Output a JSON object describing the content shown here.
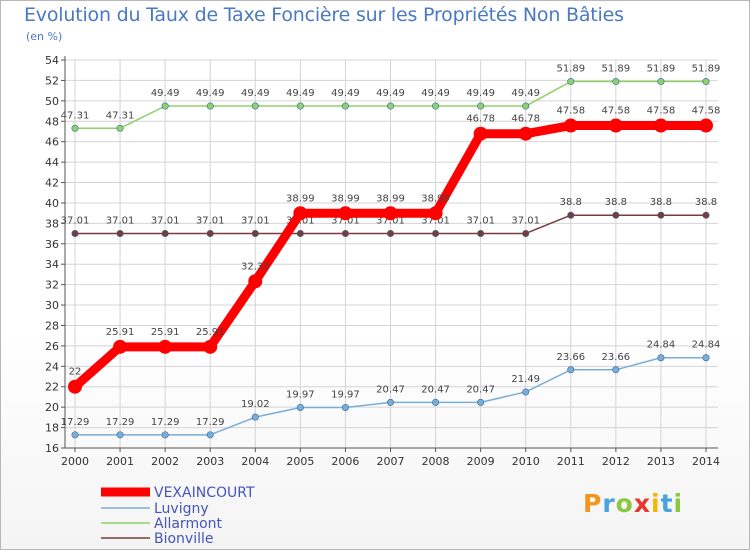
{
  "title": "Evolution du Taux de Taxe Foncière sur les Propriétés Non Bâties",
  "unit": "(en %)",
  "logo": {
    "text": "Proxiti",
    "colors": [
      "#f7941d",
      "#4aa3df",
      "#8dc63f",
      "#e8352e",
      "#f7b500",
      "#4aa3df",
      "#8dc63f"
    ]
  },
  "chart_data": {
    "type": "line",
    "title": "Evolution du Taux de Taxe Foncière sur les Propriétés Non Bâties",
    "ylabel": "(en %)",
    "xlabel": "",
    "x": [
      "2000",
      "2001",
      "2002",
      "2003",
      "2004",
      "2005",
      "2006",
      "2007",
      "2008",
      "2009",
      "2010",
      "2011",
      "2012",
      "2013",
      "2014"
    ],
    "ylim": [
      16,
      54
    ],
    "yticks": [
      16,
      18,
      20,
      22,
      24,
      26,
      28,
      30,
      32,
      34,
      36,
      38,
      40,
      42,
      44,
      46,
      48,
      50,
      52,
      54
    ],
    "grid": true,
    "legend": "bottom-left",
    "series": [
      {
        "name": "VEXAINCOURT",
        "color": "#ff0000",
        "values": [
          22,
          25.91,
          25.91,
          25.91,
          32.33,
          38.99,
          38.99,
          38.99,
          38.99,
          46.78,
          46.78,
          47.58,
          47.58,
          47.58,
          47.58
        ],
        "labels": [
          "22",
          "25.91",
          "25.91",
          "25.91",
          "32.33",
          "38.99",
          "38.99",
          "38.99",
          "38.99",
          "46.78",
          "46.78",
          "47.58",
          "47.58",
          "47.58",
          "47.58"
        ]
      },
      {
        "name": "Luvigny",
        "color": "#7baed6",
        "values": [
          17.29,
          17.29,
          17.29,
          17.29,
          19.02,
          19.97,
          19.97,
          20.47,
          20.47,
          20.47,
          21.49,
          23.66,
          23.66,
          24.84,
          24.84
        ],
        "labels": [
          "17.29",
          "17.29",
          "17.29",
          "17.29",
          "19.02",
          "19.97",
          "19.97",
          "20.47",
          "20.47",
          "20.47",
          "21.49",
          "23.66",
          "23.66",
          "24.84",
          "24.84"
        ]
      },
      {
        "name": "Allarmont",
        "color": "#8fd16b",
        "values": [
          47.31,
          47.31,
          49.49,
          49.49,
          49.49,
          49.49,
          49.49,
          49.49,
          49.49,
          49.49,
          49.49,
          51.89,
          51.89,
          51.89,
          51.89
        ],
        "labels": [
          "47.31",
          "47.31",
          "49.49",
          "49.49",
          "49.49",
          "49.49",
          "49.49",
          "49.49",
          "49.49",
          "49.49",
          "49.49",
          "51.89",
          "51.89",
          "51.89",
          "51.89"
        ]
      },
      {
        "name": "Bionville",
        "color": "#7a3b3b",
        "values": [
          37.01,
          37.01,
          37.01,
          37.01,
          37.01,
          37.01,
          37.01,
          37.01,
          37.01,
          37.01,
          37.01,
          38.8,
          38.8,
          38.8,
          38.8
        ],
        "labels": [
          "37.01",
          "37.01",
          "37.01",
          "37.01",
          "37.01",
          "37.01",
          "37.01",
          "37.01",
          "37.01",
          "37.01",
          "37.01",
          "38.8",
          "38.8",
          "38.8",
          "38.8"
        ]
      }
    ]
  }
}
